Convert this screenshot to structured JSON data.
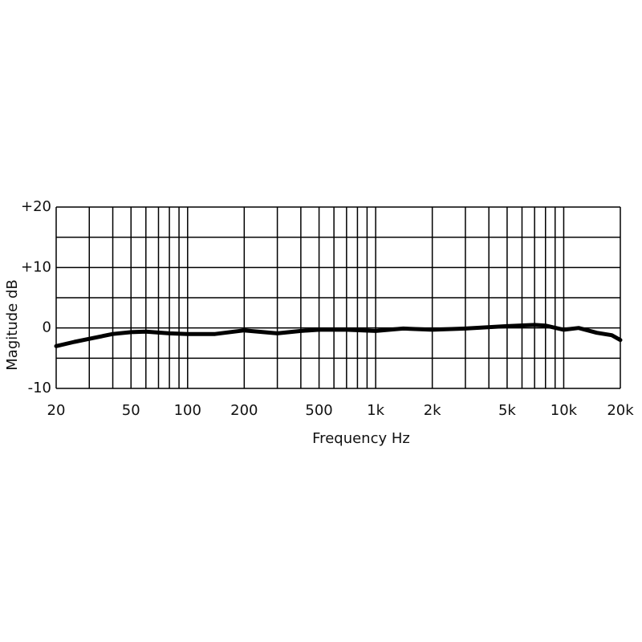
{
  "chart_data": {
    "type": "line",
    "x_label": "Frequency Hz",
    "y_label": "Magitude dB",
    "log_x": true,
    "grid": true,
    "color": "#000000",
    "x": [
      20,
      25,
      30,
      40,
      50,
      60,
      80,
      100,
      140,
      200,
      300,
      400,
      500,
      700,
      1000,
      1400,
      2000,
      3000,
      5000,
      7000,
      8000,
      10000,
      12000,
      15000,
      18000,
      20000
    ],
    "values": [
      -3.0,
      -2.3,
      -1.8,
      -1.0,
      -0.7,
      -0.6,
      -0.9,
      -1.0,
      -1.0,
      -0.4,
      -0.9,
      -0.5,
      -0.3,
      -0.3,
      -0.5,
      -0.1,
      -0.3,
      -0.1,
      0.3,
      0.5,
      0.4,
      -0.3,
      0,
      -0.8,
      -1.2,
      -2.0
    ],
    "xlim": [
      20,
      20000
    ],
    "xticks": [
      20,
      50,
      100,
      200,
      500,
      {
        "value": 1000,
        "label": "1k"
      },
      {
        "value": 2000,
        "label": "2k"
      },
      {
        "value": 5000,
        "label": "5k"
      },
      {
        "value": 10000,
        "label": "10k"
      },
      {
        "value": 20000,
        "label": "20k"
      }
    ],
    "x_minor_ticks": [
      30,
      40,
      60,
      70,
      80,
      90,
      300,
      400,
      600,
      700,
      800,
      900,
      3000,
      4000,
      6000,
      7000,
      8000,
      9000
    ],
    "ylim": [
      -10,
      20
    ],
    "yticks": [
      -10,
      {
        "value": 0,
        "label": "0"
      },
      {
        "value": 10,
        "label": "+10"
      },
      {
        "value": 20,
        "label": "+20"
      }
    ],
    "y_minor_ticks": [
      -5,
      5,
      15
    ]
  }
}
